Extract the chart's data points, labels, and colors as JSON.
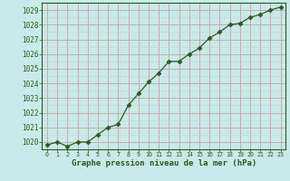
{
  "x": [
    0,
    1,
    2,
    3,
    4,
    5,
    6,
    7,
    8,
    9,
    10,
    11,
    12,
    13,
    14,
    15,
    16,
    17,
    18,
    19,
    20,
    21,
    22,
    23
  ],
  "y": [
    1019.8,
    1020.0,
    1019.7,
    1020.0,
    1020.0,
    1020.5,
    1021.0,
    1021.2,
    1022.5,
    1023.3,
    1024.1,
    1024.7,
    1025.5,
    1025.5,
    1026.0,
    1026.4,
    1027.1,
    1027.5,
    1028.0,
    1028.1,
    1028.5,
    1028.7,
    1029.0,
    1029.2
  ],
  "line_color": "#2d5a1b",
  "marker": "D",
  "marker_size": 2.5,
  "background_color": "#c8eaea",
  "grid_major_color": "#c8a0a0",
  "grid_minor_color": "#d8c8c8",
  "ylabel_ticks": [
    1020,
    1021,
    1022,
    1023,
    1024,
    1025,
    1026,
    1027,
    1028,
    1029
  ],
  "xlabel_label": "Graphe pression niveau de la mer (hPa)",
  "xlabel_ticks": [
    0,
    1,
    2,
    3,
    4,
    5,
    6,
    7,
    8,
    9,
    10,
    11,
    12,
    13,
    14,
    15,
    16,
    17,
    18,
    19,
    20,
    21,
    22,
    23
  ],
  "ylim": [
    1019.5,
    1029.5
  ],
  "xlim": [
    -0.5,
    23.5
  ],
  "text_color": "#2d5a1b",
  "font_family": "monospace",
  "tick_fontsize": 5.5,
  "xlabel_fontsize": 6.5
}
